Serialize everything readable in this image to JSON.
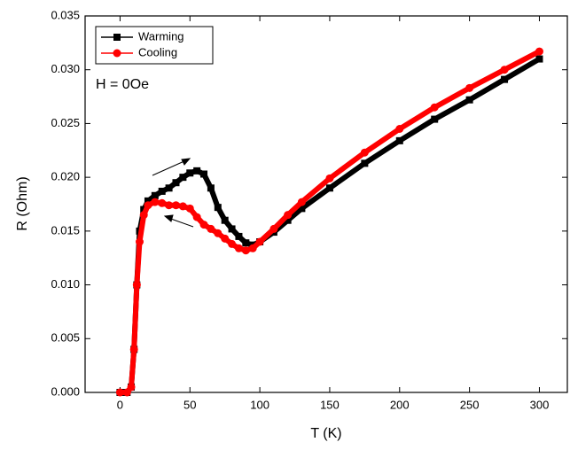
{
  "chart_data": {
    "type": "line",
    "xlabel": "T (K)",
    "ylabel": "R (Ohm)",
    "annotation": "H = 0Oe",
    "x": [
      0,
      5,
      8,
      10,
      12,
      14,
      17,
      20,
      25,
      30,
      35,
      40,
      45,
      50,
      55,
      60,
      65,
      70,
      75,
      80,
      85,
      90,
      95,
      100,
      110,
      120,
      130,
      150,
      175,
      200,
      225,
      250,
      275,
      300
    ],
    "series": [
      {
        "name": "Warming",
        "color": "#000000",
        "marker": "square",
        "values": [
          0,
          0,
          0.0005,
          0.004,
          0.01,
          0.015,
          0.017,
          0.0178,
          0.0183,
          0.0187,
          0.019,
          0.0195,
          0.02,
          0.0204,
          0.0206,
          0.0203,
          0.019,
          0.0172,
          0.016,
          0.0152,
          0.0145,
          0.0139,
          0.0137,
          0.014,
          0.0149,
          0.016,
          0.0171,
          0.019,
          0.0213,
          0.0234,
          0.0254,
          0.0272,
          0.0291,
          0.031
        ]
      },
      {
        "name": "Cooling",
        "color": "#ff0000",
        "marker": "circle",
        "values": [
          0,
          0,
          0.0005,
          0.004,
          0.01,
          0.014,
          0.0165,
          0.0174,
          0.0177,
          0.0176,
          0.0174,
          0.0174,
          0.0173,
          0.0171,
          0.0163,
          0.0156,
          0.0152,
          0.0148,
          0.0143,
          0.0138,
          0.0134,
          0.0132,
          0.0134,
          0.014,
          0.0152,
          0.0165,
          0.0177,
          0.0199,
          0.0223,
          0.0245,
          0.0265,
          0.0283,
          0.03,
          0.0317
        ]
      }
    ],
    "xlim": [
      -25,
      320
    ],
    "xticks": [
      0,
      50,
      100,
      150,
      200,
      250,
      300
    ],
    "ylim": [
      0,
      0.035
    ],
    "yticks": [
      {
        "value": 0,
        "label": "0.000"
      },
      {
        "value": 0.005,
        "label": "0.005"
      },
      {
        "value": 0.01,
        "label": "0.010"
      },
      {
        "value": 0.015,
        "label": "0.015"
      },
      {
        "value": 0.02,
        "label": "0.020"
      },
      {
        "value": 0.025,
        "label": "0.025"
      },
      {
        "value": 0.03,
        "label": "0.030"
      },
      {
        "value": 0.035,
        "label": "0.035"
      }
    ],
    "legend": "upper-left",
    "grid": false
  }
}
